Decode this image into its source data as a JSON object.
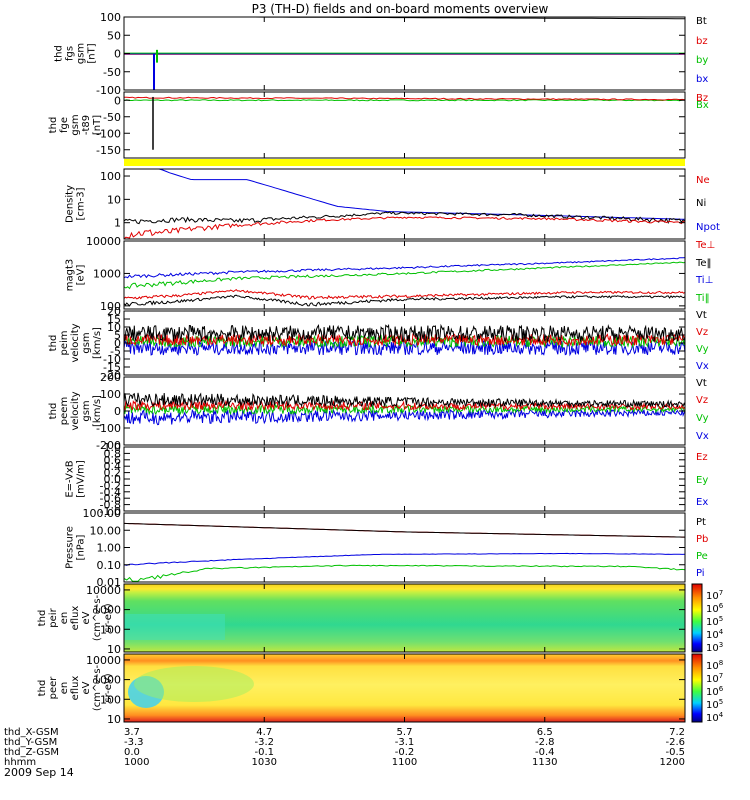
{
  "title": "P3 (TH-D) fields and on-board moments overview",
  "date": "2009 Sep 14",
  "chart_data": {
    "type": "line",
    "x_axis": {
      "rows": [
        {
          "label": "thd_X-GSM",
          "values": [
            "3.7",
            "4.7",
            "5.7",
            "6.5",
            "7.2"
          ]
        },
        {
          "label": "thd_Y-GSM",
          "values": [
            "-3.3",
            "-3.2",
            "-3.1",
            "-2.8",
            "-2.6"
          ]
        },
        {
          "label": "thd_Z-GSM",
          "values": [
            "0.0",
            "-0.1",
            "-0.2",
            "-0.4",
            "-0.5"
          ]
        },
        {
          "label": "hhmm",
          "values": [
            "1000",
            "1030",
            "1100",
            "1130",
            "1200"
          ]
        }
      ]
    },
    "panels": [
      {
        "id": "fgs",
        "ylabel": [
          "thd",
          "fgs",
          "gsm",
          "[nT]"
        ],
        "ylim": [
          -100,
          100
        ],
        "scale": "linear",
        "ticks": [
          "100",
          "50",
          "0",
          "-50",
          "-100"
        ],
        "legend": [
          {
            "name": "Bt",
            "color": "#000000"
          },
          {
            "name": "bz",
            "color": "#e00000"
          },
          {
            "name": "by",
            "color": "#00c000"
          },
          {
            "name": "bx",
            "color": "#0000e0"
          }
        ]
      },
      {
        "id": "fge",
        "ylabel": [
          "thd",
          "fge",
          "gsm",
          "-t89",
          "[nT]"
        ],
        "ylim": [
          -175,
          25
        ],
        "scale": "linear",
        "ticks": [
          "0",
          "-50",
          "-100",
          "-150"
        ],
        "legend": [
          {
            "name": "Bz",
            "color": "#e00000"
          },
          {
            "name": "Bx",
            "color": "#00c000"
          }
        ]
      },
      {
        "id": "density",
        "ylabel": [
          "Density",
          "[cm-3]"
        ],
        "ylim": [
          0.2,
          200
        ],
        "scale": "log",
        "ticks": [
          "100",
          "10",
          "1"
        ],
        "legend": [
          {
            "name": "Ne",
            "color": "#e00000"
          },
          {
            "name": "Ni",
            "color": "#000000"
          },
          {
            "name": "Npot",
            "color": "#0000e0"
          }
        ]
      },
      {
        "id": "temp",
        "ylabel": [
          "magt3",
          "[eV]"
        ],
        "ylim": [
          80,
          10000
        ],
        "scale": "log",
        "ticks": [
          "10000",
          "1000",
          "100"
        ],
        "legend": [
          {
            "name": "Te⊥",
            "color": "#e00000"
          },
          {
            "name": "Te‖",
            "color": "#000000"
          },
          {
            "name": "Ti⊥",
            "color": "#0000e0"
          },
          {
            "name": "Ti‖",
            "color": "#00c000"
          }
        ]
      },
      {
        "id": "peim_vel",
        "ylabel": [
          "thd",
          "peim",
          "velocity",
          "gsm",
          "[km/s]"
        ],
        "ylim": [
          -20,
          20
        ],
        "scale": "linear",
        "ticks": [
          "20",
          "15",
          "10",
          "5",
          "0",
          "-5",
          "-10",
          "-15",
          "-20"
        ],
        "legend": [
          {
            "name": "Vt",
            "color": "#000000"
          },
          {
            "name": "Vz",
            "color": "#e00000"
          },
          {
            "name": "Vy",
            "color": "#00c000"
          },
          {
            "name": "Vx",
            "color": "#0000e0"
          }
        ]
      },
      {
        "id": "peem_vel",
        "ylabel": [
          "thd",
          "peem",
          "velocity",
          "gsm",
          "[km/s]"
        ],
        "ylim": [
          -200,
          200
        ],
        "scale": "linear",
        "ticks": [
          "200",
          "100",
          "0",
          "-100",
          "-200"
        ],
        "legend": [
          {
            "name": "Vt",
            "color": "#000000"
          },
          {
            "name": "Vz",
            "color": "#e00000"
          },
          {
            "name": "Vy",
            "color": "#00c000"
          },
          {
            "name": "Vx",
            "color": "#0000e0"
          }
        ]
      },
      {
        "id": "efield",
        "ylabel": [
          "E=-VxB",
          "[mV/m]"
        ],
        "ylim": [
          -1,
          1
        ],
        "scale": "linear",
        "ticks": [
          "1.0",
          "0.8",
          "0.6",
          "0.4",
          "0.2",
          "0.0",
          "-0.2",
          "-0.4",
          "-0.6",
          "-0.8",
          "-1.0"
        ],
        "legend": [
          {
            "name": "Ez",
            "color": "#e00000"
          },
          {
            "name": "Ey",
            "color": "#00c000"
          },
          {
            "name": "Ex",
            "color": "#0000e0"
          }
        ]
      },
      {
        "id": "pressure",
        "ylabel": [
          "Pressure",
          "[nPa]"
        ],
        "ylim": [
          0.01,
          100
        ],
        "scale": "log",
        "ticks": [
          "100.00",
          "10.00",
          "1.00",
          "0.10",
          "0.01"
        ],
        "legend": [
          {
            "name": "Pt",
            "color": "#000000"
          },
          {
            "name": "Pb",
            "color": "#e00000"
          },
          {
            "name": "Pe",
            "color": "#00c000"
          },
          {
            "name": "Pi",
            "color": "#0000e0"
          }
        ]
      },
      {
        "id": "peir_spec",
        "ylabel": [
          "thd",
          "peir",
          "en",
          "eflux",
          "eV",
          "(cm^2-s-",
          "sr-eV)"
        ],
        "ylim": [
          7,
          20000
        ],
        "scale": "log",
        "ticks": [
          "10000",
          "1000",
          "100",
          "10"
        ],
        "colorbar_ticks": [
          "10^7",
          "10^6",
          "10^5",
          "10^4",
          "10^3"
        ]
      },
      {
        "id": "peer_spec",
        "ylabel": [
          "thd",
          "peer",
          "en",
          "eflux",
          "eV",
          "(cm^2-s-",
          "sr-eV)"
        ],
        "ylim": [
          7,
          20000
        ],
        "scale": "log",
        "ticks": [
          "10000",
          "1000",
          "100",
          "10"
        ],
        "colorbar_ticks": [
          "10^8",
          "10^7",
          "10^6",
          "10^5",
          "10^4"
        ]
      }
    ]
  }
}
